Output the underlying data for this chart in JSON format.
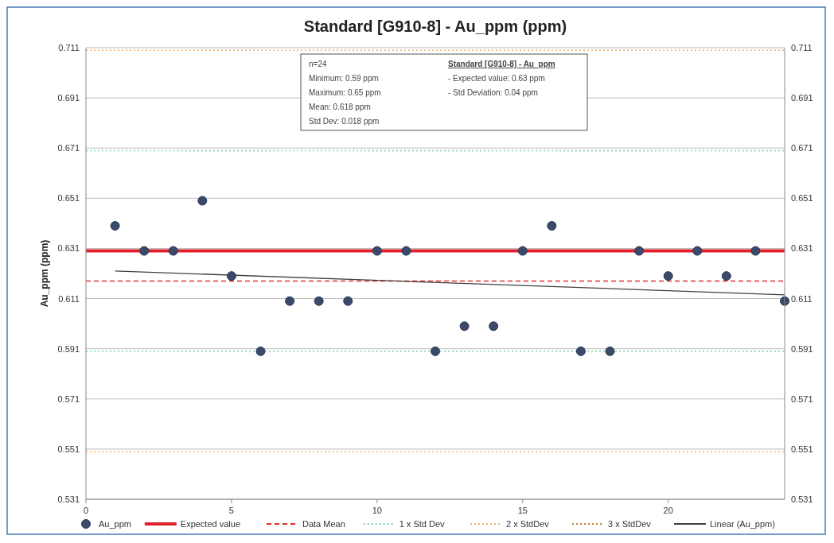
{
  "chart_data": {
    "type": "scatter",
    "title": "Standard [G910-8] - Au_ppm (ppm)",
    "ylabel": "Au_ppm (ppm)",
    "x": [
      1,
      2,
      3,
      4,
      5,
      6,
      7,
      8,
      9,
      10,
      11,
      12,
      13,
      14,
      15,
      16,
      17,
      18,
      19,
      20,
      21,
      22,
      23,
      24
    ],
    "series": [
      {
        "name": "Au_ppm",
        "marker": "circle",
        "color": "#3b4a6b",
        "values": [
          0.64,
          0.63,
          0.63,
          0.65,
          0.62,
          0.59,
          0.61,
          0.61,
          0.61,
          0.63,
          0.63,
          0.59,
          0.6,
          0.6,
          0.63,
          0.64,
          0.59,
          0.59,
          0.63,
          0.62,
          0.63,
          0.62,
          0.63,
          0.61
        ]
      },
      {
        "name": "3 x StdDev",
        "type": "line",
        "color": "#c0803a",
        "line_style": "dotted",
        "values": [
          null,
          null,
          null,
          null,
          null,
          null,
          null,
          null,
          null,
          null,
          null,
          null,
          null,
          null,
          null,
          null,
          null,
          null,
          null,
          null,
          null,
          null,
          null,
          null
        ]
      },
      {
        "name": "Linear (Au_ppm)",
        "type": "line",
        "marker": "none",
        "color": "#404040",
        "line_style": "solid",
        "x": [
          1,
          24
        ],
        "values": [
          0.622,
          0.6125
        ]
      }
    ],
    "ref_lines": [
      {
        "axis": "y",
        "value": 0.63,
        "label": "Expected value",
        "color": "#e0202a",
        "line_style": "solid"
      },
      {
        "axis": "y",
        "value": 0.618,
        "label": "Data Mean",
        "color": "#e03030",
        "line_style": "dashed"
      },
      {
        "axis": "y",
        "value": 0.67,
        "label": "1 x Std Dev",
        "color": "#7fcfb0",
        "line_style": "dotted"
      },
      {
        "axis": "y",
        "value": 0.59,
        "color": "#7fcfb0",
        "line_style": "dotted"
      },
      {
        "axis": "y",
        "value": 0.71,
        "label": "2 x StdDev",
        "color": "#f0b070",
        "line_style": "dotted"
      },
      {
        "axis": "y",
        "value": 0.55,
        "color": "#f0b070",
        "line_style": "dotted"
      }
    ],
    "annotations": [
      "n=24",
      "Minimum: 0.59 ppm",
      "Maximum: 0.65 ppm",
      "Mean: 0.618 ppm",
      "Std Dev: 0.018 ppm",
      "Standard [G910-8] - Au_ppm",
      "- Expected value: 0.63 ppm",
      "- Std Deviation: 0.04 ppm"
    ],
    "xlim": [
      0,
      24
    ],
    "xticks": [
      0,
      5,
      10,
      15,
      20
    ],
    "ylim": [
      0.531,
      0.711
    ],
    "yticks": [
      0.531,
      0.551,
      0.571,
      0.591,
      0.611,
      0.631,
      0.651,
      0.671,
      0.691,
      0.711
    ],
    "y2lim": [
      0.531,
      0.711
    ],
    "y2ticks": [
      0.531,
      0.551,
      0.571,
      0.591,
      0.611,
      0.631,
      0.651,
      0.671,
      0.691,
      0.711
    ],
    "grid": "y",
    "legend": "bottom"
  }
}
